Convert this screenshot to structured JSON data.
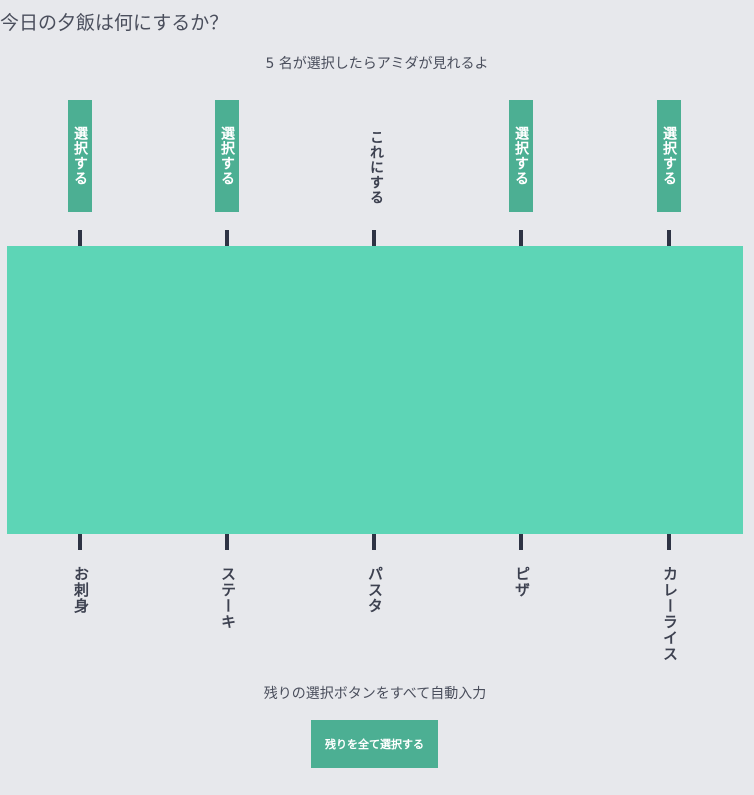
{
  "header": {
    "title": "今日の夕飯は何にするか？",
    "subtitle": "5 名が選択したらアミダが見れるよ"
  },
  "top_slots": [
    {
      "label": "選択する",
      "state": "button"
    },
    {
      "label": "選択する",
      "state": "button"
    },
    {
      "label": "これにする",
      "state": "chosen"
    },
    {
      "label": "選択する",
      "state": "button"
    },
    {
      "label": "選択する",
      "state": "button"
    }
  ],
  "results": [
    {
      "label": "お刺身"
    },
    {
      "label": "ステーキ"
    },
    {
      "label": "パスタ"
    },
    {
      "label": "ピザ"
    },
    {
      "label": "カレーライス"
    }
  ],
  "autofill": {
    "caption": "残りの選択ボタンをすべて自動入力",
    "button_label": "残りを全て選択する"
  },
  "colors": {
    "background": "#e7e8ec",
    "accent": "#4caf93",
    "board": "#5dd5b6",
    "tick": "#2e3344",
    "text": "#3d4150"
  }
}
